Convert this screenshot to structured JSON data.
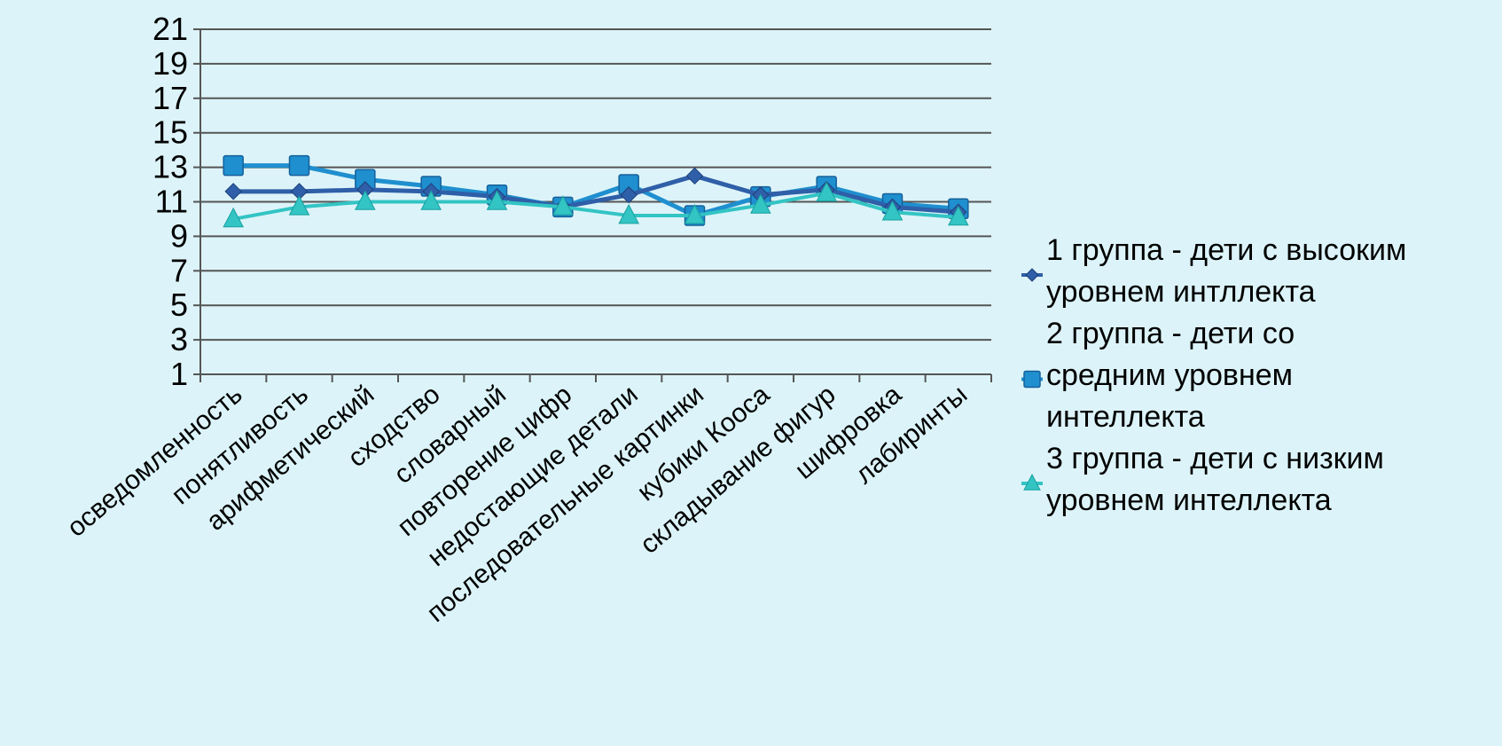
{
  "chart_data": {
    "type": "line",
    "title": "",
    "xlabel": "",
    "ylabel": "",
    "categories": [
      "осведомленность",
      "понятливость",
      "арифметический",
      "сходство",
      "словарный",
      "повторение цифр",
      "недостающие детали",
      "последовательные картинки",
      "кубики Кооса",
      "складывание фигур",
      "шифровка",
      "лабиринты"
    ],
    "y_ticks": [
      "1",
      "3",
      "5",
      "7",
      "9",
      "11",
      "13",
      "15",
      "17",
      "19",
      "21"
    ],
    "ylim": [
      1,
      21
    ],
    "grid": true,
    "legend_position": "right",
    "series": [
      {
        "name": "1 группа - дети с высоким уровнем интллекта",
        "name_lines": [
          "1 группа - дети с высоким",
          "уровнем интллекта"
        ],
        "marker": "diamond",
        "color": "#2f5fa8",
        "values": [
          11.6,
          11.6,
          11.7,
          11.6,
          11.3,
          10.7,
          11.4,
          12.5,
          11.4,
          11.7,
          10.7,
          10.4
        ]
      },
      {
        "name": "2 группа - дети со средним уровнем интеллекта",
        "name_lines": [
          "2 группа - дети со",
          "средним уровнем",
          "интеллекта"
        ],
        "marker": "square",
        "color": "#1f8fcf",
        "values": [
          13.1,
          13.1,
          12.3,
          11.9,
          11.4,
          10.7,
          12.0,
          10.2,
          11.3,
          11.9,
          10.9,
          10.6
        ]
      },
      {
        "name": "3 группа - дети с низким уровнем интеллекта",
        "name_lines": [
          "3 группа - дети с низким",
          "уровнем интеллекта"
        ],
        "marker": "triangle",
        "color": "#33c4c4",
        "values": [
          10.0,
          10.7,
          11.0,
          11.0,
          11.0,
          10.7,
          10.2,
          10.2,
          10.8,
          11.5,
          10.4,
          10.1
        ]
      }
    ]
  }
}
